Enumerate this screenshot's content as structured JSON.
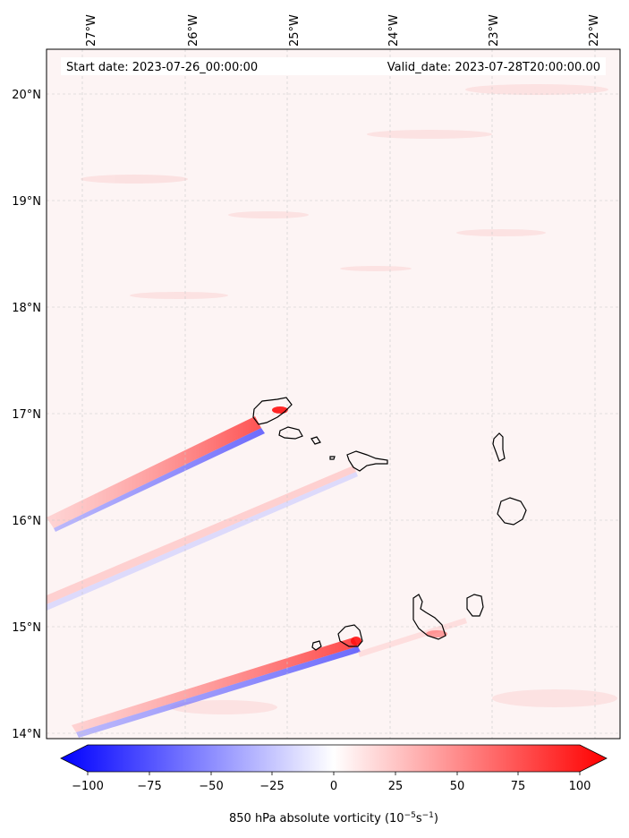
{
  "map": {
    "start_date_label": "Start date: 2023-07-26_00:00:00",
    "valid_date_label": "Valid_date: 2023-07-28T20:00:00.00",
    "lon_labels": [
      "27°W",
      "26°W",
      "25°W",
      "24°W",
      "23°W",
      "22°W"
    ],
    "lat_labels": [
      "20°N",
      "19°N",
      "18°N",
      "17°N",
      "16°N",
      "15°N",
      "14°N"
    ],
    "grid_style": "dashed light gray",
    "background_color": "#fdf4f4"
  },
  "colorbar": {
    "title_prefix": "850 hPa absolute vorticity (10",
    "title_exp1": "−5",
    "title_mid": "s",
    "title_exp2": "−1",
    "title_suffix": ")",
    "ticks": [
      "−100",
      "−75",
      "−50",
      "−25",
      "0",
      "25",
      "50",
      "75",
      "100"
    ],
    "min": -100,
    "max": 100,
    "colormap": "bwr",
    "low_color": "#0000ff",
    "mid_color": "#ffffff",
    "high_color": "#ff0000"
  }
}
